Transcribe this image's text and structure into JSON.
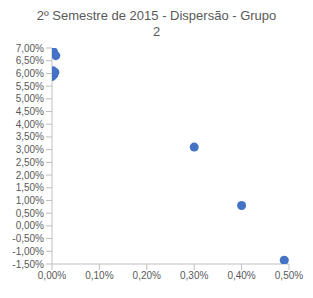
{
  "chart_data": {
    "type": "scatter",
    "title": "2º Semestre de 2015 - Dispersão - Grupo 2",
    "x": [
      0.0,
      0.003,
      0.008,
      0.002,
      0.0,
      0.004,
      0.0,
      0.006,
      0.3,
      0.4,
      0.49
    ],
    "values": [
      6.9,
      6.85,
      6.7,
      6.1,
      6.0,
      5.95,
      5.88,
      6.05,
      3.1,
      0.8,
      -1.35
    ],
    "color": "#4472c4",
    "marker": "circle",
    "xlim": [
      0,
      0.5
    ],
    "xticks": [
      {
        "value": 0,
        "label": "0,00%"
      },
      {
        "value": 0.1,
        "label": "0,10%"
      },
      {
        "value": 0.2,
        "label": "0,20%"
      },
      {
        "value": 0.3,
        "label": "0,30%"
      },
      {
        "value": 0.4,
        "label": "0,40%"
      },
      {
        "value": 0.5,
        "label": "0,50%"
      }
    ],
    "ylim": [
      -1.5,
      7
    ],
    "yticks": [
      {
        "value": -1.5,
        "label": "-1,50%"
      },
      {
        "value": -1,
        "label": "-1,00%"
      },
      {
        "value": -0.5,
        "label": "-0,50%"
      },
      {
        "value": 0,
        "label": "0,00%"
      },
      {
        "value": 0.5,
        "label": "0,50%"
      },
      {
        "value": 1,
        "label": "1,00%"
      },
      {
        "value": 1.5,
        "label": "1,50%"
      },
      {
        "value": 2,
        "label": "2,00%"
      },
      {
        "value": 2.5,
        "label": "2,50%"
      },
      {
        "value": 3,
        "label": "3,00%"
      },
      {
        "value": 3.5,
        "label": "3,50%"
      },
      {
        "value": 4,
        "label": "4,00%"
      },
      {
        "value": 4.5,
        "label": "4,50%"
      },
      {
        "value": 5,
        "label": "5,00%"
      },
      {
        "value": 5.5,
        "label": "5,50%"
      },
      {
        "value": 6,
        "label": "6,00%"
      },
      {
        "value": 6.5,
        "label": "6,50%"
      },
      {
        "value": 7,
        "label": "7,00%"
      }
    ],
    "grid": false
  }
}
